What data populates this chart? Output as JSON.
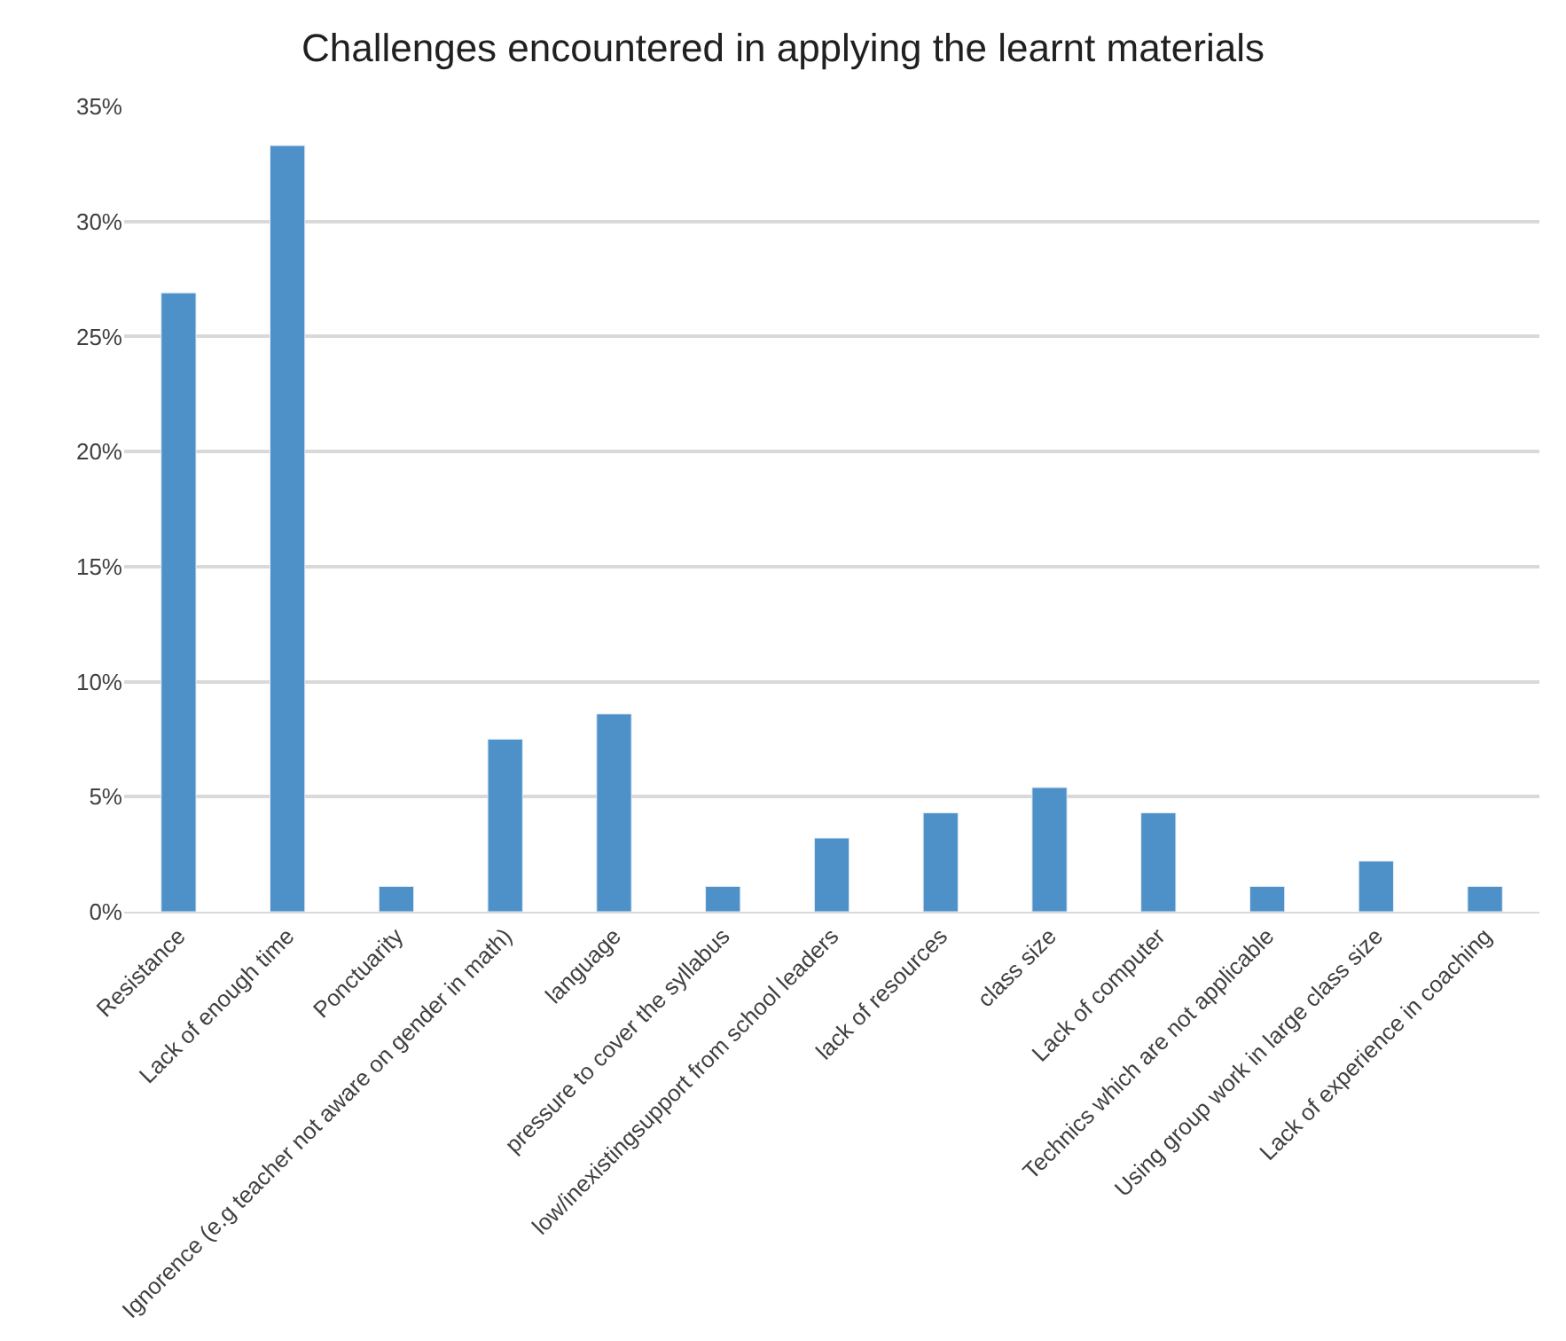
{
  "chart_data": {
    "type": "bar",
    "title": "Challenges encountered in applying the learnt materials",
    "categories": [
      "Resistance",
      "Lack of enough time",
      "Ponctuarity",
      "Ignorence (e.g teacher not aware on gender in math)",
      "language",
      "pressure to cover the syllabus",
      "low/inexistingsupport from school leaders",
      "lack of resources",
      "class size",
      "Lack of computer",
      "Technics which are not applicable",
      "Using group work in large class size",
      "Lack of experience in coaching"
    ],
    "values": [
      26.9,
      33.3,
      1.1,
      7.5,
      8.6,
      1.1,
      3.2,
      4.3,
      5.4,
      4.3,
      1.1,
      2.2,
      1.1
    ],
    "color": "#4e91c9",
    "ylim": [
      0,
      35
    ],
    "yticks": [
      {
        "value": 0,
        "label": "0%"
      },
      {
        "value": 5,
        "label": "5%"
      },
      {
        "value": 10,
        "label": "10%"
      },
      {
        "value": 15,
        "label": "15%"
      },
      {
        "value": 20,
        "label": "20%"
      },
      {
        "value": 25,
        "label": "25%"
      },
      {
        "value": 30,
        "label": "30%"
      },
      {
        "value": 35,
        "label": "35%"
      }
    ],
    "grid": "y"
  }
}
